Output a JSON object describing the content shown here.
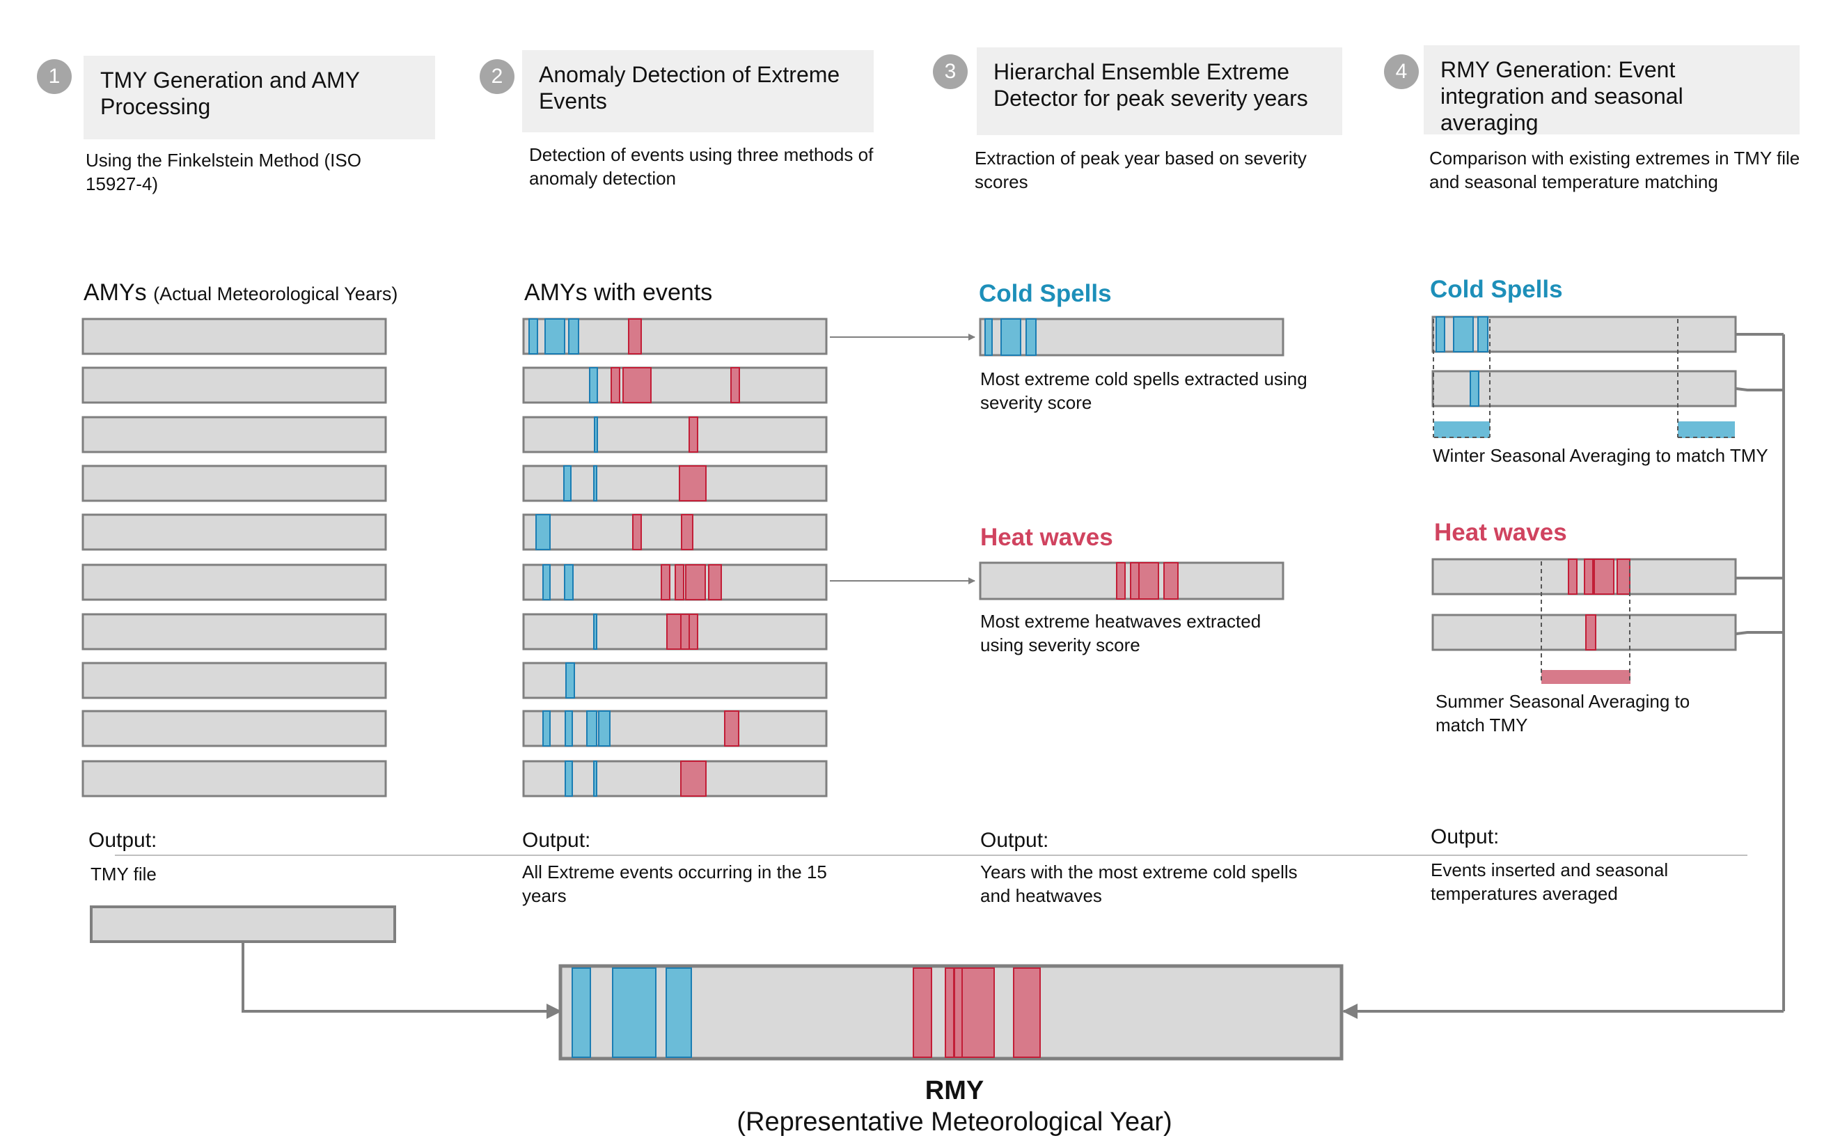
{
  "steps": [
    {
      "num": "1",
      "title": "TMY Generation and AMY Processing",
      "desc": "Using the Finkelstein Method (ISO 15927-4)"
    },
    {
      "num": "2",
      "title": "Anomaly Detection of Extreme Events",
      "desc": "Detection of events using three methods of anomaly detection"
    },
    {
      "num": "3",
      "title": "Hierarchal Ensemble Extreme Detector for peak severity years",
      "desc": "Extraction of peak year based on severity scores"
    },
    {
      "num": "4",
      "title": "RMY Generation: Event integration and seasonal averaging",
      "desc": "Comparison with existing extremes in TMY file and seasonal temperature matching"
    }
  ],
  "col1": {
    "heading": "AMYs",
    "heading_note": "(Actual Meteorological Years)"
  },
  "col2": {
    "heading": "AMYs with events"
  },
  "col3": {
    "cold_title": "Cold Spells",
    "cold_caption": "Most extreme cold spells extracted using severity score",
    "heat_title": "Heat waves",
    "heat_caption": "Most extreme heatwaves extracted using severity score"
  },
  "col4": {
    "cold_title": "Cold Spells",
    "winter_caption": "Winter Seasonal Averaging to match TMY",
    "heat_title": "Heat waves",
    "summer_caption": "Summer Seasonal Averaging to match TMY"
  },
  "outputs": [
    {
      "label": "Output:",
      "text": "TMY file"
    },
    {
      "label": "Output:",
      "text": "All Extreme events occurring in the 15 years"
    },
    {
      "label": "Output:",
      "text": "Years with the most extreme cold spells and heatwaves"
    },
    {
      "label": "Output:",
      "text": "Events inserted and seasonal temperatures averaged"
    }
  ],
  "rmy": {
    "title": "RMY",
    "subtitle": "(Representative Meteorological Year)"
  },
  "colors": {
    "cold": "#6bbcd8",
    "cold_edge": "#1b7db3",
    "heat": "#d77a8a",
    "heat_edge": "#c21e37",
    "bar": "#d9d9d9",
    "bar_edge": "#7f7f7f"
  }
}
